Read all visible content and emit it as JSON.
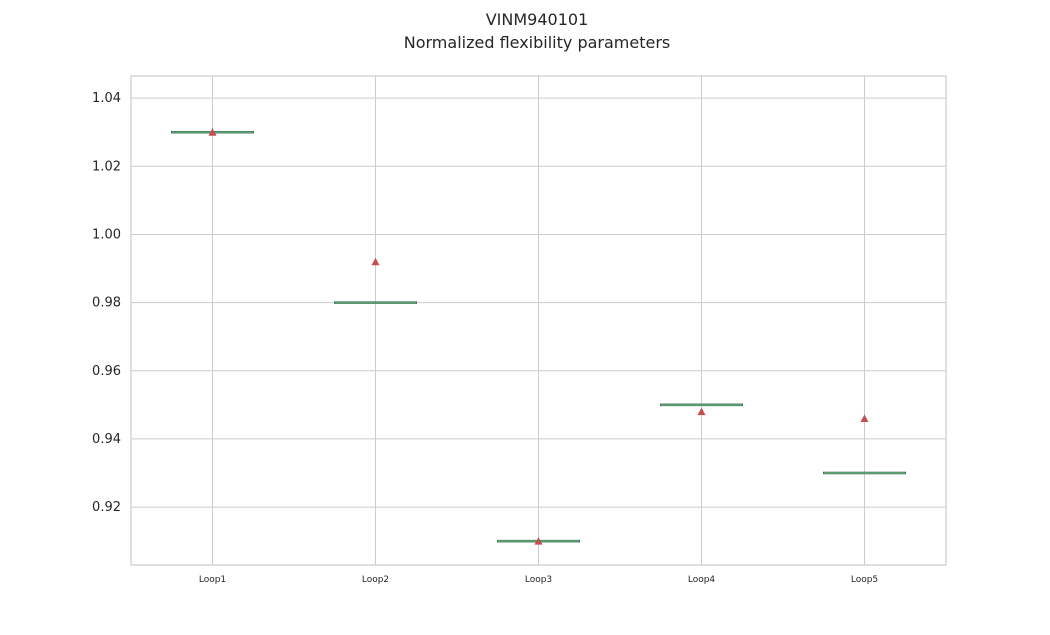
{
  "chart_data": {
    "type": "box",
    "title": "VINM940101",
    "subtitle": "Normalized flexibility parameters",
    "xlabel": "",
    "ylabel": "",
    "categories": [
      "Loop1",
      "Loop2",
      "Loop3",
      "Loop4",
      "Loop5"
    ],
    "medians": [
      1.03,
      0.98,
      0.91,
      0.95,
      0.93
    ],
    "means": [
      1.03,
      0.992,
      0.91,
      0.948,
      0.946
    ],
    "ylim": [
      0.903,
      1.0465
    ],
    "yticks": [
      0.92,
      0.94,
      0.96,
      0.98,
      1.0,
      1.02,
      1.04
    ],
    "ytick_labels": [
      "0.92",
      "0.94",
      "0.96",
      "0.98",
      "1.00",
      "1.02",
      "1.04"
    ],
    "grid": true,
    "colors": {
      "median_line": "#5a9e6f",
      "box": "#2f4f4f",
      "mean_marker": "#c44e52",
      "grid": "#cccccc",
      "axes_edge": "#cccccc",
      "text": "#262626"
    }
  }
}
